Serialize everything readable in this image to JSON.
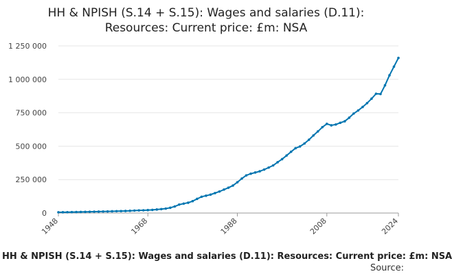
{
  "chart_data": {
    "type": "line",
    "title_lines": [
      "HH & NPISH (S.14 + S.15): Wages and salaries (D.11):",
      "Resources: Current price: £m: NSA"
    ],
    "xlabel": "",
    "ylabel": "",
    "x_ticks": [
      "1948",
      "1968",
      "1988",
      "2008",
      "2024"
    ],
    "x_tick_values": [
      1948,
      1968,
      1988,
      2008,
      2024
    ],
    "y_ticks": [
      "0",
      "250 000",
      "500 000",
      "750 000",
      "1 000 000",
      "1 250 000"
    ],
    "y_tick_values": [
      0,
      250000,
      500000,
      750000,
      1000000,
      1250000
    ],
    "xlim": [
      1948,
      2024
    ],
    "ylim": [
      0,
      1250000
    ],
    "grid": true,
    "legend": "none",
    "line_color": "#0075b0",
    "x": [
      1948,
      1949,
      1950,
      1951,
      1952,
      1953,
      1954,
      1955,
      1956,
      1957,
      1958,
      1959,
      1960,
      1961,
      1962,
      1963,
      1964,
      1965,
      1966,
      1967,
      1968,
      1969,
      1970,
      1971,
      1972,
      1973,
      1974,
      1975,
      1976,
      1977,
      1978,
      1979,
      1980,
      1981,
      1982,
      1983,
      1984,
      1985,
      1986,
      1987,
      1988,
      1989,
      1990,
      1991,
      1992,
      1993,
      1994,
      1995,
      1996,
      1997,
      1998,
      1999,
      2000,
      2001,
      2002,
      2003,
      2004,
      2005,
      2006,
      2007,
      2008,
      2009,
      2010,
      2011,
      2012,
      2013,
      2014,
      2015,
      2016,
      2017,
      2018,
      2019,
      2020,
      2021,
      2022,
      2023,
      2024
    ],
    "y": [
      5500,
      6000,
      6400,
      7000,
      7600,
      8100,
      8700,
      9400,
      10200,
      10900,
      11400,
      12000,
      13000,
      14000,
      14700,
      15500,
      16900,
      18300,
      19600,
      20500,
      21900,
      23500,
      26500,
      29300,
      33200,
      39400,
      49100,
      63100,
      70300,
      77100,
      89000,
      105800,
      121600,
      129600,
      137700,
      149200,
      160800,
      175300,
      189300,
      205200,
      230000,
      258000,
      281800,
      294000,
      303000,
      312000,
      325000,
      340000,
      356000,
      380000,
      403000,
      430000,
      458000,
      485000,
      498000,
      520000,
      548000,
      580000,
      610000,
      642000,
      667000,
      656000,
      662000,
      675000,
      686000,
      713000,
      744000,
      767000,
      793000,
      822000,
      855000,
      892000,
      890000,
      955000,
      1030000,
      1095000,
      1160000
    ]
  },
  "footer": {
    "caption": "HH & NPISH (S.14 + S.15): Wages and salaries (D.11): Resources: Current price: £m: NSA",
    "source": "Source:"
  }
}
